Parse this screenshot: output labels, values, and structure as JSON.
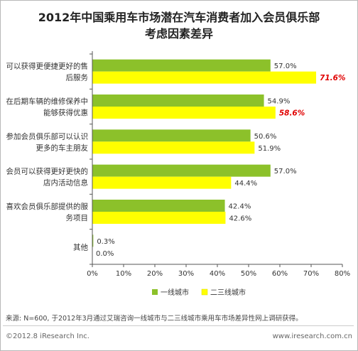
{
  "chart_data": {
    "type": "bar",
    "orientation": "horizontal",
    "title_line1": "2012年中国乘用车市场潜在汽车消费者加入会员俱乐部",
    "title_line2": "考虑因素差异",
    "categories": [
      [
        "可以获得更便捷更好的售",
        "后服务"
      ],
      [
        "在后期车辆的维修保养中",
        "能够获得优惠"
      ],
      [
        "参加会员俱乐部可以认识",
        "更多的车主朋友"
      ],
      [
        "会员可以获得更好更快的",
        "店内活动信息"
      ],
      [
        "喜欢会员俱乐部提供的服",
        "务项目"
      ],
      [
        "其他"
      ]
    ],
    "series": [
      {
        "name": "一线城市",
        "color": "#8cc12a",
        "values": [
          57.0,
          54.9,
          50.6,
          57.0,
          42.4,
          0.3
        ]
      },
      {
        "name": "二三线城市",
        "color": "#ffff00",
        "values": [
          71.6,
          58.6,
          51.9,
          44.4,
          42.6,
          0.0
        ]
      }
    ],
    "value_labels": [
      [
        "57.0%",
        "54.9%",
        "50.6%",
        "57.0%",
        "42.4%",
        "0.3%"
      ],
      [
        "71.6%",
        "58.6%",
        "51.9%",
        "44.4%",
        "42.6%",
        "0.0%"
      ]
    ],
    "highlighted": [
      [
        0,
        1
      ],
      [
        1,
        1
      ]
    ],
    "highlight_color": "#e00000",
    "xlim": [
      0,
      80
    ],
    "xticks": [
      "0%",
      "10%",
      "20%",
      "30%",
      "40%",
      "50%",
      "60%",
      "70%",
      "80%"
    ],
    "grid": false,
    "legend_position": "bottom-center"
  },
  "note": "来源: N=600, 于2012年3月通过艾瑞咨询一线城市与二三线城市乘用车市场差异性网上调研获得。",
  "footer": {
    "left": "©2012.8 iResearch Inc.",
    "right": "www.iresearch.com.cn"
  }
}
